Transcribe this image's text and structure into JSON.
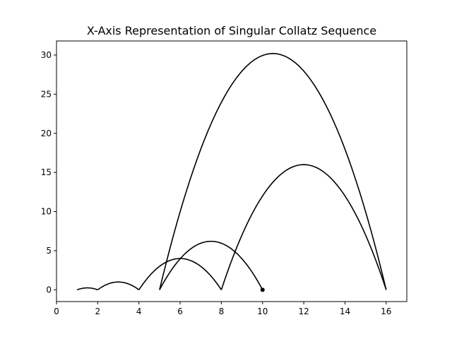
{
  "chart_data": {
    "type": "line",
    "title": "X-Axis Representation of Singular Collatz Sequence",
    "xlabel": "",
    "ylabel": "",
    "xlim": [
      0,
      17
    ],
    "ylim": [
      -1.5,
      31.8
    ],
    "x_ticks": [
      0,
      2,
      4,
      6,
      8,
      10,
      12,
      14,
      16
    ],
    "y_ticks": [
      0,
      5,
      10,
      15,
      20,
      25,
      30
    ],
    "grid": false,
    "line_color": "#000000",
    "sequence": [
      10,
      5,
      16,
      8,
      4,
      2,
      1
    ],
    "arcs": [
      {
        "from": 10,
        "to": 5,
        "peak": 6.2
      },
      {
        "from": 5,
        "to": 16,
        "peak": 30.2
      },
      {
        "from": 16,
        "to": 8,
        "peak": 16.0
      },
      {
        "from": 8,
        "to": 4,
        "peak": 4.0
      },
      {
        "from": 4,
        "to": 2,
        "peak": 1.0
      },
      {
        "from": 2,
        "to": 1,
        "peak": 0.25
      }
    ],
    "end_marker": {
      "x": 10,
      "y": 0
    }
  }
}
